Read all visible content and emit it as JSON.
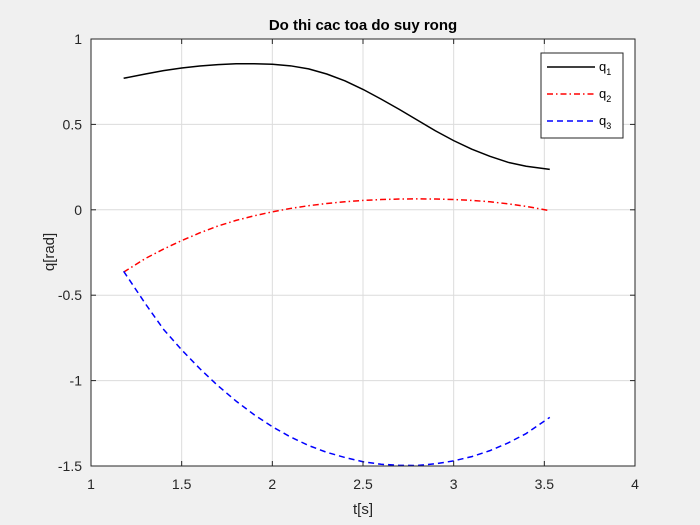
{
  "chart_data": {
    "type": "line",
    "title": "Do thi cac toa do suy rong",
    "xlabel": "t[s]",
    "ylabel": "q[rad]",
    "xlim": [
      1,
      4
    ],
    "ylim": [
      -1.5,
      1
    ],
    "grid": true,
    "legend_position": "top-right",
    "xticks": [
      1,
      1.5,
      2,
      2.5,
      3,
      3.5,
      4
    ],
    "xtick_labels": [
      "1",
      "1.5",
      "2",
      "2.5",
      "3",
      "3.5",
      "4"
    ],
    "yticks": [
      -1.5,
      -1,
      -0.5,
      0,
      0.5,
      1
    ],
    "ytick_labels": [
      "-1.5",
      "-1",
      "-0.5",
      "0",
      "0.5",
      "1"
    ],
    "x": [
      1.18,
      1.3,
      1.4,
      1.5,
      1.6,
      1.7,
      1.8,
      1.9,
      2.0,
      2.1,
      2.2,
      2.3,
      2.4,
      2.5,
      2.6,
      2.7,
      2.8,
      2.9,
      3.0,
      3.1,
      3.2,
      3.3,
      3.4,
      3.53
    ],
    "series": [
      {
        "name": "q",
        "subscript": "1",
        "color": "#000000",
        "dash": "solid",
        "values": [
          0.77,
          0.795,
          0.815,
          0.83,
          0.842,
          0.85,
          0.855,
          0.855,
          0.852,
          0.843,
          0.825,
          0.795,
          0.755,
          0.705,
          0.648,
          0.588,
          0.525,
          0.462,
          0.405,
          0.355,
          0.313,
          0.278,
          0.255,
          0.237
        ]
      },
      {
        "name": "q",
        "subscript": "2",
        "color": "#ff0000",
        "dash": "dashdot",
        "values": [
          -0.365,
          -0.285,
          -0.23,
          -0.18,
          -0.135,
          -0.095,
          -0.062,
          -0.035,
          -0.012,
          0.008,
          0.024,
          0.037,
          0.047,
          0.055,
          0.06,
          0.063,
          0.064,
          0.063,
          0.06,
          0.055,
          0.047,
          0.035,
          0.02,
          -0.005
        ]
      },
      {
        "name": "q",
        "subscript": "3",
        "color": "#0000ff",
        "dash": "dashed",
        "values": [
          -0.36,
          -0.55,
          -0.7,
          -0.82,
          -0.93,
          -1.03,
          -1.12,
          -1.2,
          -1.27,
          -1.33,
          -1.38,
          -1.42,
          -1.45,
          -1.475,
          -1.49,
          -1.496,
          -1.497,
          -1.487,
          -1.47,
          -1.445,
          -1.41,
          -1.365,
          -1.31,
          -1.215
        ]
      }
    ]
  }
}
